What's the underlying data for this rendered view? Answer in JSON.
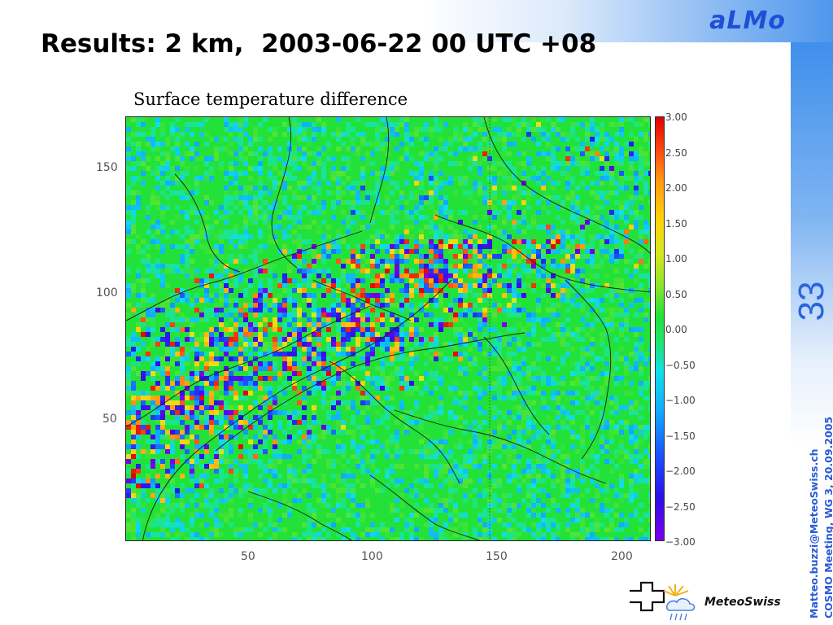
{
  "header": {
    "brand": "aLMo",
    "title": "Results: 2 km,  2003-06-22 00 UTC +08",
    "slide_number": "33"
  },
  "footer": {
    "email": "Matteo.buzzi@MeteoSwiss.ch",
    "meeting": "COSMO Meeting, WG 3, 20.09.2005"
  },
  "logo": {
    "text": "MeteoSwiss"
  },
  "chart_data": {
    "type": "heatmap",
    "title": "Surface temperature difference",
    "x_ticks": [
      "50",
      "100",
      "150",
      "200"
    ],
    "y_ticks": [
      "150",
      "100",
      "50"
    ],
    "colorbar_ticks": [
      "3.00",
      "2.50",
      "2.00",
      "1.50",
      "1.00",
      "0.50",
      "0.00",
      "−0.50",
      "−1.00",
      "−1.50",
      "−2.00",
      "−2.50",
      "−3.00"
    ],
    "colorbar_range": [
      -3.0,
      3.0
    ],
    "colors": {
      "min": "#7b00e8",
      "neutral": "#22e23a",
      "max": "#e00000"
    }
  }
}
